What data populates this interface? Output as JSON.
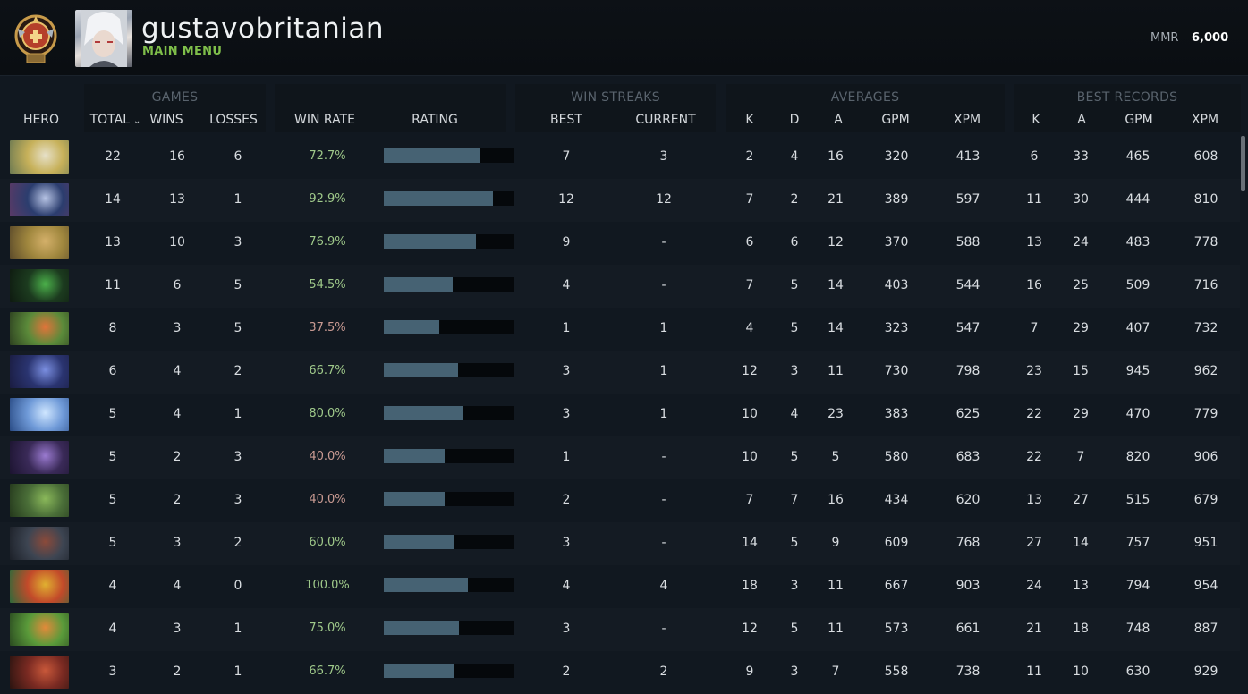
{
  "header": {
    "username": "gustavobritanian",
    "main_menu": "MAIN MENU",
    "mmr_label": "MMR",
    "mmr_value": "6,000",
    "rank_badge_icon": "ancient-rank-medal-icon",
    "avatar_icon": "player-avatar"
  },
  "groups": {
    "games": "GAMES",
    "win_streaks": "WIN STREAKS",
    "averages": "AVERAGES",
    "best_records": "BEST RECORDS"
  },
  "columns": {
    "hero": "HERO",
    "total": "TOTAL",
    "wins": "WINS",
    "losses": "LOSSES",
    "win_rate": "WIN RATE",
    "rating": "RATING",
    "best": "BEST",
    "current": "CURRENT",
    "avg_k": "K",
    "avg_d": "D",
    "avg_a": "A",
    "avg_gpm": "GPM",
    "avg_xpm": "XPM",
    "best_k": "K",
    "best_a": "A",
    "best_gpm": "GPM",
    "best_xpm": "XPM"
  },
  "colors": {
    "winrate_good": "#9fc98a",
    "winrate_bad": "#c99a92",
    "bar_fill": "#466273",
    "main_menu": "#7fbf4a"
  },
  "rows": [
    {
      "hero_icon": "hero-portrait-skywrath",
      "total": "22",
      "wins": "16",
      "losses": "6",
      "win_rate": "72.7%",
      "rating": 0.74,
      "best": "7",
      "current": "3",
      "k": "2",
      "d": "4",
      "a": "16",
      "gpm": "320",
      "xpm": "413",
      "bk": "6",
      "ba": "33",
      "bgpm": "465",
      "bxpm": "608"
    },
    {
      "hero_icon": "hero-portrait-mirana",
      "total": "14",
      "wins": "13",
      "losses": "1",
      "win_rate": "92.9%",
      "rating": 0.84,
      "best": "12",
      "current": "12",
      "k": "7",
      "d": "2",
      "a": "21",
      "gpm": "389",
      "xpm": "597",
      "bk": "11",
      "ba": "30",
      "bgpm": "444",
      "bxpm": "810"
    },
    {
      "hero_icon": "hero-portrait-bounty",
      "total": "13",
      "wins": "10",
      "losses": "3",
      "win_rate": "76.9%",
      "rating": 0.71,
      "best": "9",
      "current": "-",
      "k": "6",
      "d": "6",
      "a": "12",
      "gpm": "370",
      "xpm": "588",
      "bk": "13",
      "ba": "24",
      "bgpm": "483",
      "bxpm": "778"
    },
    {
      "hero_icon": "hero-portrait-rubick",
      "total": "11",
      "wins": "6",
      "losses": "5",
      "win_rate": "54.5%",
      "rating": 0.53,
      "best": "4",
      "current": "-",
      "k": "7",
      "d": "5",
      "a": "14",
      "gpm": "403",
      "xpm": "544",
      "bk": "16",
      "ba": "25",
      "bgpm": "509",
      "bxpm": "716"
    },
    {
      "hero_icon": "hero-portrait-windranger",
      "total": "8",
      "wins": "3",
      "losses": "5",
      "win_rate": "37.5%",
      "rating": 0.43,
      "best": "1",
      "current": "1",
      "k": "4",
      "d": "5",
      "a": "14",
      "gpm": "323",
      "xpm": "547",
      "bk": "7",
      "ba": "29",
      "bgpm": "407",
      "bxpm": "732"
    },
    {
      "hero_icon": "hero-portrait-luna",
      "total": "6",
      "wins": "4",
      "losses": "2",
      "win_rate": "66.7%",
      "rating": 0.57,
      "best": "3",
      "current": "1",
      "k": "12",
      "d": "3",
      "a": "11",
      "gpm": "730",
      "xpm": "798",
      "bk": "23",
      "ba": "15",
      "bgpm": "945",
      "bxpm": "962"
    },
    {
      "hero_icon": "hero-portrait-crystal-maiden",
      "total": "5",
      "wins": "4",
      "losses": "1",
      "win_rate": "80.0%",
      "rating": 0.61,
      "best": "3",
      "current": "1",
      "k": "10",
      "d": "4",
      "a": "23",
      "gpm": "383",
      "xpm": "625",
      "bk": "22",
      "ba": "29",
      "bgpm": "470",
      "bxpm": "779"
    },
    {
      "hero_icon": "hero-portrait-faceless-void",
      "total": "5",
      "wins": "2",
      "losses": "3",
      "win_rate": "40.0%",
      "rating": 0.47,
      "best": "1",
      "current": "-",
      "k": "10",
      "d": "5",
      "a": "5",
      "gpm": "580",
      "xpm": "683",
      "bk": "22",
      "ba": "7",
      "bgpm": "820",
      "bxpm": "906"
    },
    {
      "hero_icon": "hero-portrait-tiny",
      "total": "5",
      "wins": "2",
      "losses": "3",
      "win_rate": "40.0%",
      "rating": 0.47,
      "best": "2",
      "current": "-",
      "k": "7",
      "d": "7",
      "a": "16",
      "gpm": "434",
      "xpm": "620",
      "bk": "13",
      "ba": "27",
      "bgpm": "515",
      "bxpm": "679"
    },
    {
      "hero_icon": "hero-portrait-ursa",
      "total": "5",
      "wins": "3",
      "losses": "2",
      "win_rate": "60.0%",
      "rating": 0.54,
      "best": "3",
      "current": "-",
      "k": "14",
      "d": "5",
      "a": "9",
      "gpm": "609",
      "xpm": "768",
      "bk": "27",
      "ba": "14",
      "bgpm": "757",
      "bxpm": "951"
    },
    {
      "hero_icon": "hero-portrait-techies",
      "total": "4",
      "wins": "4",
      "losses": "0",
      "win_rate": "100.0%",
      "rating": 0.65,
      "best": "4",
      "current": "4",
      "k": "18",
      "d": "3",
      "a": "11",
      "gpm": "667",
      "xpm": "903",
      "bk": "24",
      "ba": "13",
      "bgpm": "794",
      "bxpm": "954"
    },
    {
      "hero_icon": "hero-portrait-lina",
      "total": "4",
      "wins": "3",
      "losses": "1",
      "win_rate": "75.0%",
      "rating": 0.58,
      "best": "3",
      "current": "-",
      "k": "12",
      "d": "5",
      "a": "11",
      "gpm": "573",
      "xpm": "661",
      "bk": "21",
      "ba": "18",
      "bgpm": "748",
      "bxpm": "887"
    },
    {
      "hero_icon": "hero-portrait-axe",
      "total": "3",
      "wins": "2",
      "losses": "1",
      "win_rate": "66.7%",
      "rating": 0.54,
      "best": "2",
      "current": "2",
      "k": "9",
      "d": "3",
      "a": "7",
      "gpm": "558",
      "xpm": "738",
      "bk": "11",
      "ba": "10",
      "bgpm": "630",
      "bxpm": "929"
    }
  ]
}
